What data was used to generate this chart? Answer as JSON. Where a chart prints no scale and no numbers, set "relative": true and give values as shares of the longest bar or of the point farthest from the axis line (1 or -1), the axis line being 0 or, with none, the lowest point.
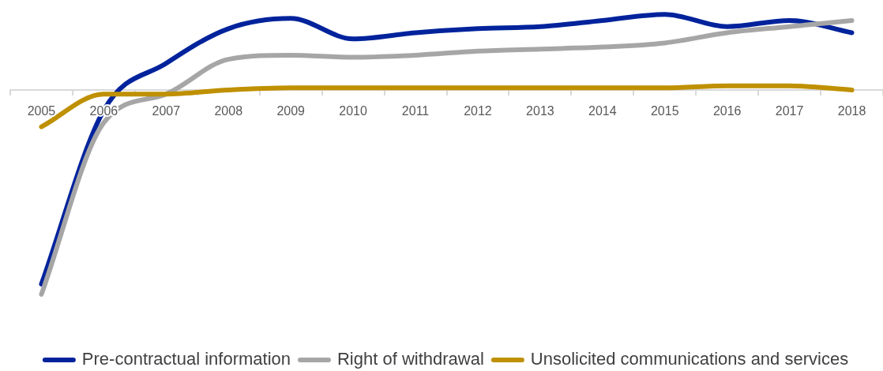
{
  "chart_data": {
    "type": "line",
    "relative": true,
    "categories": [
      "2005",
      "2006",
      "2007",
      "2008",
      "2009",
      "2010",
      "2011",
      "2012",
      "2013",
      "2014",
      "2015",
      "2016",
      "2017",
      "2018"
    ],
    "series": [
      {
        "name": "Pre-contractual information",
        "color": "#00239c",
        "values": [
          -0.95,
          -0.1,
          0.13,
          0.3,
          0.35,
          0.25,
          0.28,
          0.3,
          0.31,
          0.34,
          0.37,
          0.31,
          0.34,
          0.28
        ]
      },
      {
        "name": "Right of withdrawal",
        "color": "#a6a6a6",
        "values": [
          -1,
          -0.16,
          -0.02,
          0.15,
          0.17,
          0.16,
          0.17,
          0.19,
          0.2,
          0.21,
          0.23,
          0.28,
          0.31,
          0.34
        ]
      },
      {
        "name": "Unsolicited communications and services",
        "color": "#bf9000",
        "values": [
          -0.18,
          -0.02,
          -0.02,
          0,
          0.01,
          0.01,
          0.01,
          0.01,
          0.01,
          0.01,
          0.01,
          0.02,
          0.02,
          0
        ]
      }
    ],
    "legend": "bottom",
    "grid": false,
    "marker": "none"
  }
}
